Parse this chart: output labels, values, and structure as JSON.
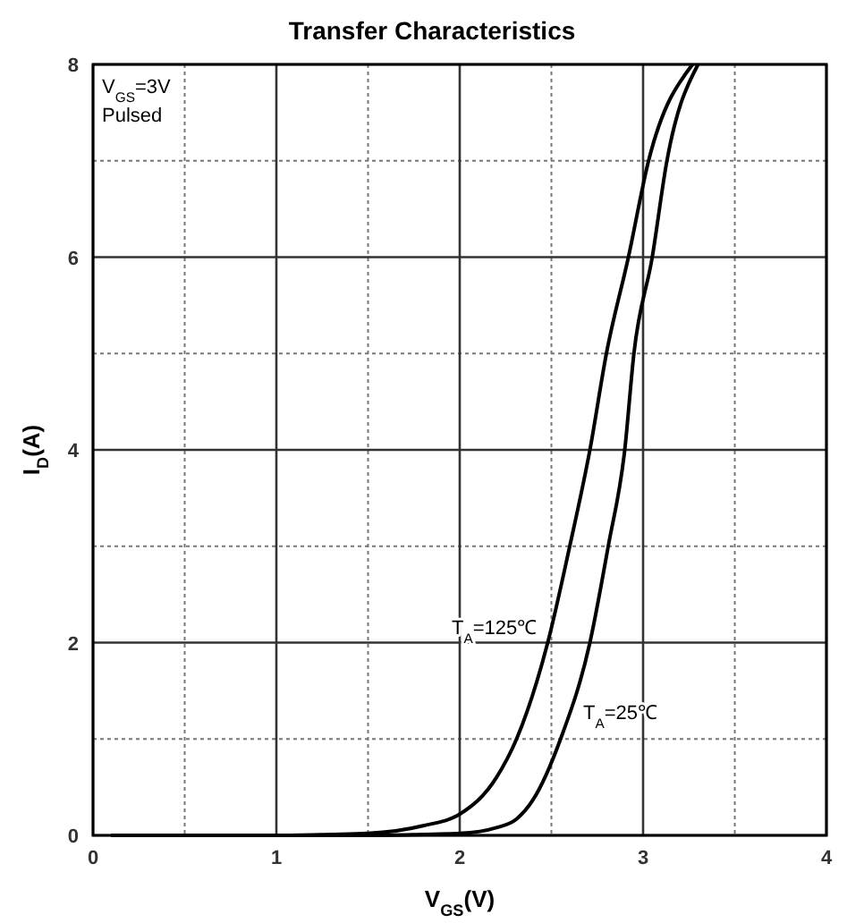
{
  "chart_data": {
    "type": "line",
    "title": "Transfer Characteristics",
    "xlabel": "V$_{GS}$(V)",
    "ylabel": "I$_{D}$(A)",
    "xlim": [
      0,
      4
    ],
    "ylim": [
      0,
      8
    ],
    "xticks": [
      0,
      1,
      2,
      3,
      4
    ],
    "yticks": [
      0,
      2,
      4,
      6,
      8
    ],
    "grid": true,
    "line_style": "solid",
    "series": [
      {
        "name": "T$_{A}$=125℃",
        "color": "#000000",
        "x": [
          0.1,
          1.0,
          1.3,
          1.5,
          1.8,
          2.0,
          2.2,
          2.31,
          2.48,
          2.6,
          2.71,
          2.8,
          2.92,
          3.03,
          3.27
        ],
        "values": [
          0,
          0,
          0.01,
          0.02,
          0.1,
          0.22,
          0.6,
          1,
          2,
          3,
          4,
          5,
          6,
          7,
          8
        ]
      },
      {
        "name": "T$_{A}$=25℃",
        "color": "#000000",
        "x": [
          0.1,
          1.5,
          1.8,
          2.0,
          2.2,
          2.31,
          2.4,
          2.55,
          2.71,
          2.81,
          2.9,
          2.95,
          3.05,
          3.13,
          3.3
        ],
        "values": [
          0,
          0,
          0.01,
          0.02,
          0.08,
          0.17,
          0.37,
          1,
          2,
          3,
          4,
          5,
          6,
          7,
          8
        ]
      }
    ],
    "annotations": [
      "V$_{GS}$=3V",
      "Pulsed"
    ]
  }
}
